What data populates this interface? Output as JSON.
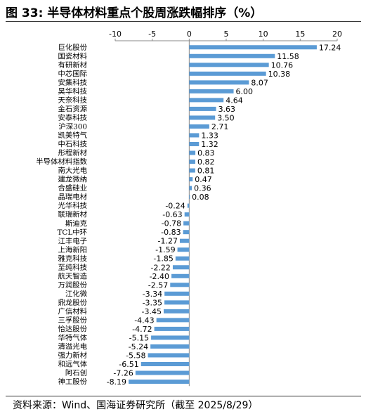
{
  "figure": {
    "title": "图 33:  半导体材料重点个股周涨跌幅排序（%）",
    "source": "资料来源：Wind、国海证券研究所（截至 2025/8/29）",
    "bar_color": "#5b9bd5"
  },
  "chart_data": {
    "type": "bar",
    "orientation": "horizontal",
    "title": "",
    "xlabel": "",
    "ylabel": "",
    "xlim": [
      -10,
      20
    ],
    "xticks": [
      -10,
      -5,
      0,
      5,
      10,
      15,
      20
    ],
    "grid": false,
    "legend": "none",
    "categories": [
      "巨化股份",
      "国瓷材料",
      "有研新材",
      "中芯国际",
      "安集科技",
      "昊华科技",
      "天奈科技",
      "金石资源",
      "安泰科技",
      "沪深300",
      "凯美特气",
      "中石科技",
      "彤程新材",
      "半导体材料指数",
      "南大光电",
      "建龙微纳",
      "合盛硅业",
      "晶瑞电材",
      "光华科技",
      "联瑞新材",
      "斯迪克",
      "TCL中环",
      "江丰电子",
      "上海新阳",
      "雅克科技",
      "至纯科技",
      "航天智造",
      "万润股份",
      "江化微",
      "鼎龙股份",
      "广信材料",
      "三孚股份",
      "怡达股份",
      "华特气体",
      "清溢光电",
      "强力新材",
      "和远气体",
      "阿石创",
      "神工股份"
    ],
    "values": [
      17.24,
      11.58,
      10.76,
      10.38,
      8.07,
      6.0,
      4.64,
      3.63,
      3.5,
      2.71,
      1.33,
      1.32,
      0.83,
      0.82,
      0.81,
      0.47,
      0.36,
      0.08,
      -0.24,
      -0.63,
      -0.78,
      -0.83,
      -1.27,
      -1.59,
      -1.85,
      -2.22,
      -2.4,
      -2.57,
      -3.34,
      -3.35,
      -3.45,
      -4.43,
      -4.72,
      -5.15,
      -5.24,
      -5.58,
      -6.51,
      -7.26,
      -8.19
    ],
    "value_labels": [
      "17.24",
      "11.58",
      "10.76",
      "10.38",
      "8.07",
      "6.00",
      "4.64",
      "3.63",
      "3.50",
      "2.71",
      "1.33",
      "1.32",
      "0.83",
      "0.82",
      "0.81",
      "0.47",
      "0.36",
      "0.08",
      "-0.24",
      "-0.63",
      "-0.78",
      "-0.83",
      "-1.27",
      "-1.59",
      "-1.85",
      "-2.22",
      "-2.40",
      "-2.57",
      "-3.34",
      "-3.35",
      "-3.45",
      "-4.43",
      "-4.72",
      "-5.15",
      "-5.24",
      "-5.58",
      "-6.51",
      "-7.26",
      "-8.19"
    ]
  }
}
